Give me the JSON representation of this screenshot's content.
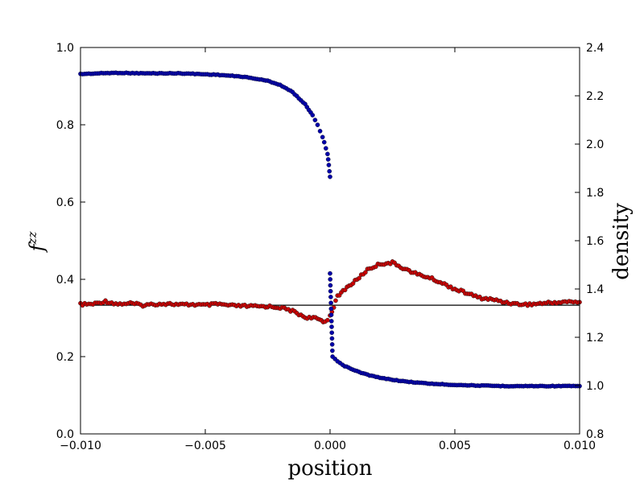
{
  "chart_data": {
    "type": "scatter",
    "title": "",
    "xlabel": "position",
    "ylabel_left": "f",
    "ylabel_left_sup": "zz",
    "ylabel_right": "density",
    "xlim": [
      -0.01,
      0.01
    ],
    "ylim_left": [
      0.0,
      1.0
    ],
    "ylim_right": [
      0.8,
      2.4
    ],
    "x_ticks": [
      -0.01,
      -0.005,
      0.0,
      0.005,
      0.01
    ],
    "x_tick_labels": [
      "−0.010",
      "−0.005",
      "0.000",
      "0.005",
      "0.010"
    ],
    "y_left_ticks": [
      0.0,
      0.2,
      0.4,
      0.6,
      0.8,
      1.0
    ],
    "y_left_tick_labels": [
      "0.0",
      "0.2",
      "0.4",
      "0.6",
      "0.8",
      "1.0"
    ],
    "y_right_ticks": [
      0.8,
      1.0,
      1.2,
      1.4,
      1.6,
      1.8,
      2.0,
      2.2,
      2.4
    ],
    "y_right_tick_labels": [
      "0.8",
      "1.0",
      "1.2",
      "1.4",
      "1.6",
      "1.8",
      "2.0",
      "2.2",
      "2.4"
    ],
    "grid": false,
    "reference_line": {
      "axis": "left",
      "y": 0.333,
      "color": "#000000"
    },
    "series": [
      {
        "axis": "left",
        "color": "#cc0000",
        "edge_color": "#222222",
        "points": [
          [
            -0.01,
            0.335
          ],
          [
            -0.0095,
            0.336
          ],
          [
            -0.009,
            0.343
          ],
          [
            -0.0085,
            0.336
          ],
          [
            -0.008,
            0.338
          ],
          [
            -0.0075,
            0.333
          ],
          [
            -0.007,
            0.336
          ],
          [
            -0.0065,
            0.337
          ],
          [
            -0.006,
            0.334
          ],
          [
            -0.0055,
            0.335
          ],
          [
            -0.005,
            0.333
          ],
          [
            -0.0045,
            0.336
          ],
          [
            -0.004,
            0.332
          ],
          [
            -0.0035,
            0.331
          ],
          [
            -0.003,
            0.33
          ],
          [
            -0.0025,
            0.33
          ],
          [
            -0.002,
            0.327
          ],
          [
            -0.0015,
            0.318
          ],
          [
            -0.001,
            0.302
          ],
          [
            -0.0005,
            0.298
          ],
          [
            -0.0002,
            0.29
          ],
          [
            0.0,
            0.305
          ],
          [
            0.0003,
            0.355
          ],
          [
            0.0006,
            0.375
          ],
          [
            0.001,
            0.395
          ],
          [
            0.0015,
            0.425
          ],
          [
            0.002,
            0.44
          ],
          [
            0.0025,
            0.443
          ],
          [
            0.003,
            0.427
          ],
          [
            0.0035,
            0.413
          ],
          [
            0.004,
            0.404
          ],
          [
            0.0045,
            0.39
          ],
          [
            0.005,
            0.375
          ],
          [
            0.0055,
            0.364
          ],
          [
            0.006,
            0.352
          ],
          [
            0.0065,
            0.348
          ],
          [
            0.007,
            0.341
          ],
          [
            0.0075,
            0.336
          ],
          [
            0.008,
            0.335
          ],
          [
            0.0085,
            0.338
          ],
          [
            0.009,
            0.34
          ],
          [
            0.0095,
            0.342
          ],
          [
            0.01,
            0.341
          ]
        ]
      },
      {
        "axis": "right",
        "color": "#0000aa",
        "edge_color": "#1a1a3a",
        "points": [
          [
            -0.01,
            2.29
          ],
          [
            -0.0095,
            2.292
          ],
          [
            -0.009,
            2.294
          ],
          [
            -0.0085,
            2.295
          ],
          [
            -0.008,
            2.294
          ],
          [
            -0.0075,
            2.293
          ],
          [
            -0.007,
            2.293
          ],
          [
            -0.0065,
            2.293
          ],
          [
            -0.006,
            2.293
          ],
          [
            -0.0055,
            2.291
          ],
          [
            -0.005,
            2.289
          ],
          [
            -0.0045,
            2.287
          ],
          [
            -0.004,
            2.283
          ],
          [
            -0.0035,
            2.279
          ],
          [
            -0.003,
            2.271
          ],
          [
            -0.0025,
            2.262
          ],
          [
            -0.002,
            2.245
          ],
          [
            -0.0015,
            2.215
          ],
          [
            -0.001,
            2.165
          ],
          [
            -0.0007,
            2.12
          ],
          [
            -0.0005,
            2.08
          ],
          [
            -0.0003,
            2.03
          ],
          [
            -0.0001,
            1.96
          ],
          [
            0.0,
            1.865
          ],
          [
            0.0,
            1.465
          ],
          [
            0.0001,
            1.12
          ],
          [
            0.0003,
            1.1
          ],
          [
            0.0005,
            1.085
          ],
          [
            0.001,
            1.062
          ],
          [
            0.0015,
            1.045
          ],
          [
            0.002,
            1.032
          ],
          [
            0.003,
            1.017
          ],
          [
            0.004,
            1.008
          ],
          [
            0.005,
            1.003
          ],
          [
            0.006,
            1.0
          ],
          [
            0.007,
            0.998
          ],
          [
            0.008,
            0.998
          ],
          [
            0.009,
            0.998
          ],
          [
            0.01,
            0.998
          ]
        ]
      }
    ]
  }
}
